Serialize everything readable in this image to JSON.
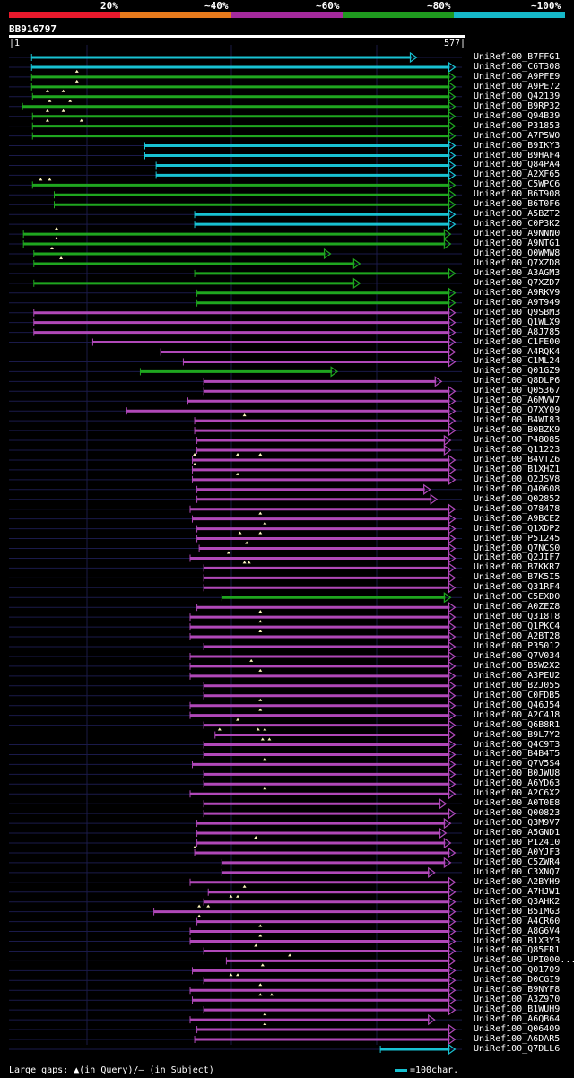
{
  "colors": {
    "background": "#000000",
    "track": "#1a1a4a",
    "cyan": "#18c2d2",
    "green": "#1fa61f",
    "magenta": "#b048b8",
    "gap_marker": "#fff8c0"
  },
  "legend": [
    {
      "label": "20%",
      "color": "#e8192c"
    },
    {
      "label": "~40%",
      "color": "#e77a1c"
    },
    {
      "label": "~60%",
      "color": "#a42a9c"
    },
    {
      "label": "~80%",
      "color": "#1f9a1f"
    },
    {
      "label": "~100%",
      "color": "#16b8c8"
    }
  ],
  "query": {
    "id": "BB916797",
    "start_label": "|1",
    "end_label": "577|",
    "length": 577
  },
  "hits": [
    {
      "name": "UniRef100_B7FFG1",
      "color": "cyan",
      "start": 50,
      "end": 900,
      "gaps": []
    },
    {
      "name": "UniRef100_C6T308",
      "color": "cyan",
      "start": 50,
      "end": 985,
      "gaps": []
    },
    {
      "name": "UniRef100_A9PFE9",
      "color": "green",
      "start": 50,
      "end": 985,
      "gaps": [
        150
      ]
    },
    {
      "name": "UniRef100_A9PE72",
      "color": "green",
      "start": 50,
      "end": 985,
      "gaps": [
        150
      ]
    },
    {
      "name": "UniRef100_Q42139",
      "color": "green",
      "start": 52,
      "end": 985,
      "gaps": [
        85,
        120
      ]
    },
    {
      "name": "UniRef100_B9RP32",
      "color": "green",
      "start": 30,
      "end": 985,
      "gaps": [
        90,
        135
      ]
    },
    {
      "name": "UniRef100_Q94B39",
      "color": "green",
      "start": 52,
      "end": 985,
      "gaps": [
        85,
        120
      ]
    },
    {
      "name": "UniRef100_P31853",
      "color": "green",
      "start": 52,
      "end": 985,
      "gaps": [
        85,
        160
      ]
    },
    {
      "name": "UniRef100_A7P5W0",
      "color": "green",
      "start": 52,
      "end": 985,
      "gaps": []
    },
    {
      "name": "UniRef100_B9IKY3",
      "color": "cyan",
      "start": 300,
      "end": 985,
      "gaps": []
    },
    {
      "name": "UniRef100_B9HAF4",
      "color": "cyan",
      "start": 300,
      "end": 985,
      "gaps": []
    },
    {
      "name": "UniRef100_Q84PA4",
      "color": "cyan",
      "start": 325,
      "end": 985,
      "gaps": []
    },
    {
      "name": "UniRef100_A2XF65",
      "color": "cyan",
      "start": 325,
      "end": 985,
      "gaps": []
    },
    {
      "name": "UniRef100_C5WPC6",
      "color": "green",
      "start": 52,
      "end": 985,
      "gaps": [
        70,
        90
      ]
    },
    {
      "name": "UniRef100_B6T908",
      "color": "green",
      "start": 100,
      "end": 985,
      "gaps": []
    },
    {
      "name": "UniRef100_B6T0F6",
      "color": "green",
      "start": 100,
      "end": 985,
      "gaps": []
    },
    {
      "name": "UniRef100_A5BZT2",
      "color": "cyan",
      "start": 410,
      "end": 985,
      "gaps": []
    },
    {
      "name": "UniRef100_C0P3K2",
      "color": "cyan",
      "start": 410,
      "end": 985,
      "gaps": []
    },
    {
      "name": "UniRef100_A9NNN0",
      "color": "green",
      "start": 32,
      "end": 975,
      "gaps": [
        105
      ]
    },
    {
      "name": "UniRef100_A9NTG1",
      "color": "green",
      "start": 32,
      "end": 975,
      "gaps": [
        105
      ]
    },
    {
      "name": "UniRef100_Q0WMW8",
      "color": "green",
      "start": 55,
      "end": 710,
      "gaps": [
        95
      ]
    },
    {
      "name": "UniRef100_Q7XZD8",
      "color": "green",
      "start": 55,
      "end": 775,
      "gaps": [
        115
      ]
    },
    {
      "name": "UniRef100_A3AGM3",
      "color": "green",
      "start": 410,
      "end": 985,
      "gaps": []
    },
    {
      "name": "UniRef100_Q7XZD7",
      "color": "green",
      "start": 55,
      "end": 775,
      "gaps": []
    },
    {
      "name": "UniRef100_A9RKV9",
      "color": "green",
      "start": 415,
      "end": 985,
      "gaps": []
    },
    {
      "name": "UniRef100_A9T949",
      "color": "green",
      "start": 415,
      "end": 985,
      "gaps": []
    },
    {
      "name": "UniRef100_Q9SBM3",
      "color": "magenta",
      "start": 55,
      "end": 985,
      "gaps": []
    },
    {
      "name": "UniRef100_Q1WLX9",
      "color": "magenta",
      "start": 55,
      "end": 985,
      "gaps": []
    },
    {
      "name": "UniRef100_A8J785",
      "color": "magenta",
      "start": 55,
      "end": 985,
      "gaps": []
    },
    {
      "name": "UniRef100_C1FE00",
      "color": "magenta",
      "start": 185,
      "end": 985,
      "gaps": []
    },
    {
      "name": "UniRef100_A4RQK4",
      "color": "magenta",
      "start": 335,
      "end": 985,
      "gaps": []
    },
    {
      "name": "UniRef100_C1ML24",
      "color": "magenta",
      "start": 385,
      "end": 985,
      "gaps": []
    },
    {
      "name": "UniRef100_Q01GZ9",
      "color": "green",
      "start": 290,
      "end": 725,
      "gaps": []
    },
    {
      "name": "UniRef100_Q8DLP6",
      "color": "magenta",
      "start": 430,
      "end": 955,
      "gaps": []
    },
    {
      "name": "UniRef100_Q05367",
      "color": "magenta",
      "start": 430,
      "end": 985,
      "gaps": []
    },
    {
      "name": "UniRef100_A6MVW7",
      "color": "magenta",
      "start": 395,
      "end": 985,
      "gaps": []
    },
    {
      "name": "UniRef100_Q7XY09",
      "color": "magenta",
      "start": 260,
      "end": 985,
      "gaps": []
    },
    {
      "name": "UniRef100_B4WI83",
      "color": "magenta",
      "start": 410,
      "end": 985,
      "gaps": [
        520
      ]
    },
    {
      "name": "UniRef100_B0BZK9",
      "color": "magenta",
      "start": 410,
      "end": 985,
      "gaps": []
    },
    {
      "name": "UniRef100_P48085",
      "color": "magenta",
      "start": 415,
      "end": 975,
      "gaps": []
    },
    {
      "name": "UniRef100_Q11223",
      "color": "magenta",
      "start": 415,
      "end": 975,
      "gaps": []
    },
    {
      "name": "UniRef100_B4VTZ6",
      "color": "magenta",
      "start": 405,
      "end": 985,
      "gaps": [
        410,
        505,
        555
      ]
    },
    {
      "name": "UniRef100_B1XHZ1",
      "color": "magenta",
      "start": 405,
      "end": 985,
      "gaps": [
        410
      ]
    },
    {
      "name": "UniRef100_Q2JSV8",
      "color": "magenta",
      "start": 405,
      "end": 985,
      "gaps": [
        505
      ]
    },
    {
      "name": "UniRef100_Q40608",
      "color": "magenta",
      "start": 415,
      "end": 930,
      "gaps": []
    },
    {
      "name": "UniRef100_Q02852",
      "color": "magenta",
      "start": 415,
      "end": 945,
      "gaps": []
    },
    {
      "name": "UniRef100_O78478",
      "color": "magenta",
      "start": 400,
      "end": 985,
      "gaps": []
    },
    {
      "name": "UniRef100_A9BCE2",
      "color": "magenta",
      "start": 405,
      "end": 985,
      "gaps": [
        555
      ]
    },
    {
      "name": "UniRef100_Q1XDP2",
      "color": "magenta",
      "start": 415,
      "end": 985,
      "gaps": [
        565
      ]
    },
    {
      "name": "UniRef100_P51245",
      "color": "magenta",
      "start": 415,
      "end": 985,
      "gaps": [
        510,
        555
      ]
    },
    {
      "name": "UniRef100_Q7NCS0",
      "color": "magenta",
      "start": 420,
      "end": 985,
      "gaps": [
        525
      ]
    },
    {
      "name": "UniRef100_Q2JIF7",
      "color": "magenta",
      "start": 400,
      "end": 985,
      "gaps": [
        485
      ]
    },
    {
      "name": "UniRef100_B7KKR7",
      "color": "magenta",
      "start": 430,
      "end": 985,
      "gaps": [
        520,
        530
      ]
    },
    {
      "name": "UniRef100_B7K5I5",
      "color": "magenta",
      "start": 430,
      "end": 985,
      "gaps": []
    },
    {
      "name": "UniRef100_Q31RF4",
      "color": "magenta",
      "start": 430,
      "end": 985,
      "gaps": []
    },
    {
      "name": "UniRef100_C5EXD0",
      "color": "green",
      "start": 470,
      "end": 975,
      "gaps": []
    },
    {
      "name": "UniRef100_A0ZEZ8",
      "color": "magenta",
      "start": 415,
      "end": 985,
      "gaps": []
    },
    {
      "name": "UniRef100_Q318T8",
      "color": "magenta",
      "start": 400,
      "end": 985,
      "gaps": [
        555
      ]
    },
    {
      "name": "UniRef100_Q1PKC4",
      "color": "magenta",
      "start": 400,
      "end": 985,
      "gaps": [
        555
      ]
    },
    {
      "name": "UniRef100_A2BT28",
      "color": "magenta",
      "start": 400,
      "end": 985,
      "gaps": [
        555
      ]
    },
    {
      "name": "UniRef100_P35012",
      "color": "magenta",
      "start": 430,
      "end": 985,
      "gaps": []
    },
    {
      "name": "UniRef100_Q7V034",
      "color": "magenta",
      "start": 400,
      "end": 985,
      "gaps": []
    },
    {
      "name": "UniRef100_B5W2X2",
      "color": "magenta",
      "start": 400,
      "end": 985,
      "gaps": [
        535
      ]
    },
    {
      "name": "UniRef100_A3PEU2",
      "color": "magenta",
      "start": 400,
      "end": 985,
      "gaps": [
        555
      ]
    },
    {
      "name": "UniRef100_B2J055",
      "color": "magenta",
      "start": 430,
      "end": 985,
      "gaps": []
    },
    {
      "name": "UniRef100_C0FDB5",
      "color": "magenta",
      "start": 430,
      "end": 985,
      "gaps": []
    },
    {
      "name": "UniRef100_Q46J54",
      "color": "magenta",
      "start": 400,
      "end": 985,
      "gaps": [
        555
      ]
    },
    {
      "name": "UniRef100_A2C4J8",
      "color": "magenta",
      "start": 400,
      "end": 985,
      "gaps": [
        555
      ]
    },
    {
      "name": "UniRef100_Q6B8R1",
      "color": "magenta",
      "start": 430,
      "end": 985,
      "gaps": [
        505
      ]
    },
    {
      "name": "UniRef100_B9L7Y2",
      "color": "magenta",
      "start": 455,
      "end": 985,
      "gaps": [
        465,
        550,
        565
      ]
    },
    {
      "name": "UniRef100_Q4C9T3",
      "color": "magenta",
      "start": 430,
      "end": 985,
      "gaps": [
        560,
        575
      ]
    },
    {
      "name": "UniRef100_B4B4T5",
      "color": "magenta",
      "start": 430,
      "end": 985,
      "gaps": []
    },
    {
      "name": "UniRef100_Q7V5S4",
      "color": "magenta",
      "start": 405,
      "end": 985,
      "gaps": [
        565
      ]
    },
    {
      "name": "UniRef100_B0JWU8",
      "color": "magenta",
      "start": 430,
      "end": 985,
      "gaps": []
    },
    {
      "name": "UniRef100_A6YD63",
      "color": "magenta",
      "start": 430,
      "end": 985,
      "gaps": []
    },
    {
      "name": "UniRef100_A2C6X2",
      "color": "magenta",
      "start": 400,
      "end": 985,
      "gaps": [
        565
      ]
    },
    {
      "name": "UniRef100_A0T0E8",
      "color": "magenta",
      "start": 430,
      "end": 965,
      "gaps": []
    },
    {
      "name": "UniRef100_Q00823",
      "color": "magenta",
      "start": 430,
      "end": 985,
      "gaps": []
    },
    {
      "name": "UniRef100_Q3M9V7",
      "color": "magenta",
      "start": 415,
      "end": 975,
      "gaps": []
    },
    {
      "name": "UniRef100_A5GND1",
      "color": "magenta",
      "start": 415,
      "end": 965,
      "gaps": []
    },
    {
      "name": "UniRef100_P12410",
      "color": "magenta",
      "start": 415,
      "end": 975,
      "gaps": [
        545
      ]
    },
    {
      "name": "UniRef100_A0YJF3",
      "color": "magenta",
      "start": 410,
      "end": 985,
      "gaps": [
        410
      ]
    },
    {
      "name": "UniRef100_C5ZWR4",
      "color": "magenta",
      "start": 470,
      "end": 975,
      "gaps": []
    },
    {
      "name": "UniRef100_C3XNQ7",
      "color": "magenta",
      "start": 470,
      "end": 940,
      "gaps": []
    },
    {
      "name": "UniRef100_A2BYH9",
      "color": "magenta",
      "start": 400,
      "end": 985,
      "gaps": []
    },
    {
      "name": "UniRef100_A7HJW1",
      "color": "magenta",
      "start": 440,
      "end": 985,
      "gaps": [
        520
      ]
    },
    {
      "name": "UniRef100_Q3AHK2",
      "color": "magenta",
      "start": 430,
      "end": 985,
      "gaps": [
        490,
        505
      ]
    },
    {
      "name": "UniRef100_B5IMG3",
      "color": "magenta",
      "start": 320,
      "end": 985,
      "gaps": [
        420,
        440
      ]
    },
    {
      "name": "UniRef100_A4CR60",
      "color": "magenta",
      "start": 415,
      "end": 985,
      "gaps": [
        420
      ]
    },
    {
      "name": "UniRef100_A8G6V4",
      "color": "magenta",
      "start": 400,
      "end": 985,
      "gaps": [
        555
      ]
    },
    {
      "name": "UniRef100_B1X3Y3",
      "color": "magenta",
      "start": 400,
      "end": 985,
      "gaps": [
        555
      ]
    },
    {
      "name": "UniRef100_Q85FR1",
      "color": "magenta",
      "start": 430,
      "end": 985,
      "gaps": [
        545
      ]
    },
    {
      "name": "UniRef100_UPI000...",
      "color": "magenta",
      "start": 480,
      "end": 985,
      "gaps": [
        620
      ]
    },
    {
      "name": "UniRef100_Q01709",
      "color": "magenta",
      "start": 405,
      "end": 985,
      "gaps": [
        560
      ]
    },
    {
      "name": "UniRef100_D0CGI9",
      "color": "magenta",
      "start": 430,
      "end": 985,
      "gaps": [
        490,
        505
      ]
    },
    {
      "name": "UniRef100_B9NYF8",
      "color": "magenta",
      "start": 400,
      "end": 985,
      "gaps": [
        555
      ]
    },
    {
      "name": "UniRef100_A3Z970",
      "color": "magenta",
      "start": 405,
      "end": 985,
      "gaps": [
        555,
        580
      ]
    },
    {
      "name": "UniRef100_B1WUH9",
      "color": "magenta",
      "start": 430,
      "end": 985,
      "gaps": []
    },
    {
      "name": "UniRef100_A6QB64",
      "color": "magenta",
      "start": 400,
      "end": 940,
      "gaps": [
        565
      ]
    },
    {
      "name": "UniRef100_Q06409",
      "color": "magenta",
      "start": 415,
      "end": 985,
      "gaps": [
        565
      ]
    },
    {
      "name": "UniRef100_A6DAR5",
      "color": "magenta",
      "start": 410,
      "end": 985,
      "gaps": []
    },
    {
      "name": "UniRef100_Q7DLL6",
      "color": "cyan",
      "start": 820,
      "end": 985,
      "gaps": []
    }
  ],
  "footer": {
    "gaps_legend": "Large gaps: ▲(in Query)/– (in Subject)",
    "scale_legend": "=100char."
  }
}
